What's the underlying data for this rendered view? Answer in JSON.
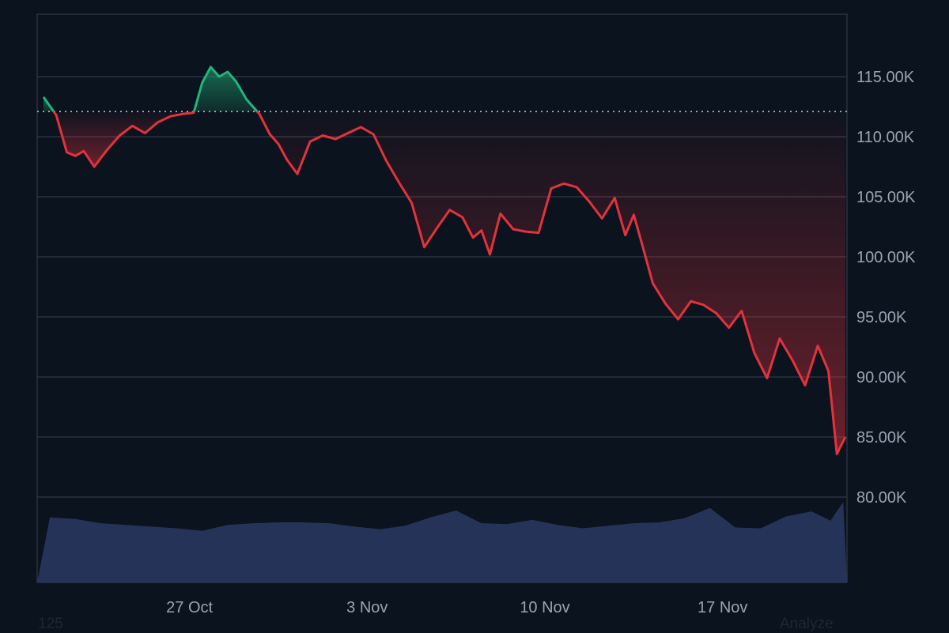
{
  "chart_data": {
    "type": "line",
    "title": "",
    "xlabel": "",
    "ylabel": "",
    "x_ticks": [
      "27 Oct",
      "3 Nov",
      "10 Nov",
      "17 Nov"
    ],
    "y_ticks": [
      "115.00K",
      "110.00K",
      "105.00K",
      "100.00K",
      "95.00K",
      "90.00K",
      "85.00K",
      "80.00K"
    ],
    "y_tick_values": [
      115000,
      110000,
      105000,
      100000,
      95000,
      90000,
      85000,
      80000
    ],
    "baseline": 112100,
    "series": [
      {
        "kind": "price",
        "x": [
          "Oct 21",
          "Oct 21",
          "Oct 22",
          "Oct 22",
          "Oct 22",
          "Oct 23",
          "Oct 23",
          "Oct 24",
          "Oct 24",
          "Oct 25",
          "Oct 25",
          "Oct 26",
          "Oct 26",
          "Oct 27",
          "Oct 27",
          "Oct 27",
          "Oct 28",
          "Oct 28",
          "Oct 28",
          "Oct 29",
          "Oct 29",
          "Oct 30",
          "Oct 30",
          "Oct 30",
          "Oct 31",
          "Oct 31",
          "Nov 1",
          "Nov 1",
          "Nov 2",
          "Nov 2",
          "Nov 3",
          "Nov 3",
          "Nov 4",
          "Nov 4",
          "Nov 5",
          "Nov 5",
          "Nov 6",
          "Nov 6",
          "Nov 7",
          "Nov 7",
          "Nov 7",
          "Nov 8",
          "Nov 8",
          "Nov 9",
          "Nov 9",
          "Nov 10",
          "Nov 10",
          "Nov 11",
          "Nov 11",
          "Nov 12",
          "Nov 12",
          "Nov 13",
          "Nov 13",
          "Nov 13",
          "Nov 14",
          "Nov 14",
          "Nov 15",
          "Nov 15",
          "Nov 16",
          "Nov 16",
          "Nov 17",
          "Nov 17",
          "Nov 18",
          "Nov 18",
          "Nov 19",
          "Nov 19",
          "Nov 20",
          "Nov 20",
          "Nov 21",
          "Nov 21",
          "Nov 21"
        ],
        "values": [
          113300,
          111800,
          108700,
          108400,
          108800,
          107500,
          108900,
          110100,
          110900,
          110300,
          111200,
          111700,
          111900,
          112000,
          114500,
          115800,
          115000,
          115400,
          114600,
          113100,
          111900,
          110200,
          109400,
          108100,
          106900,
          109600,
          110100,
          109800,
          110300,
          110800,
          110200,
          108000,
          106200,
          104500,
          100800,
          102400,
          103900,
          103300,
          101600,
          102200,
          100200,
          103600,
          102300,
          102100,
          102000,
          105700,
          106100,
          105800,
          104600,
          103200,
          104900,
          101800,
          103500,
          101000,
          97800,
          96100,
          94800,
          96300,
          96000,
          95300,
          94100,
          95500,
          92000,
          89900,
          93200,
          91400,
          89300,
          92600,
          90500,
          83600,
          85000
        ]
      },
      {
        "kind": "volume",
        "x": [
          "Oct 21",
          "Oct 22",
          "Oct 23",
          "Oct 24",
          "Oct 25",
          "Oct 26",
          "Oct 27",
          "Oct 28",
          "Oct 29",
          "Oct 30",
          "Oct 31",
          "Nov 1",
          "Nov 2",
          "Nov 3",
          "Nov 4",
          "Nov 5",
          "Nov 6",
          "Nov 7",
          "Nov 8",
          "Nov 9",
          "Nov 10",
          "Nov 11",
          "Nov 12",
          "Nov 13",
          "Nov 14",
          "Nov 15",
          "Nov 16",
          "Nov 17",
          "Nov 18",
          "Nov 19",
          "Nov 20",
          "Nov 21",
          "Nov 21"
        ],
        "values": [
          77,
          75,
          70,
          68,
          66,
          64,
          61,
          68,
          70,
          71,
          71,
          70,
          66,
          63,
          67,
          77,
          85,
          70,
          69,
          74,
          68,
          64,
          67,
          70,
          71,
          76,
          88,
          65,
          64,
          78,
          84,
          73,
          95
        ]
      }
    ],
    "grid": true,
    "y_axis_position": "right"
  },
  "footer": {
    "left": "125",
    "right": "Analyze"
  },
  "colors": {
    "background": "#0b131e",
    "grid": "#2a3340",
    "up": "#22b47a",
    "down": "#e3323c",
    "volume": "#2b3a63",
    "axis_text": "#9aa4b2",
    "baseline": "#c9ced6"
  }
}
